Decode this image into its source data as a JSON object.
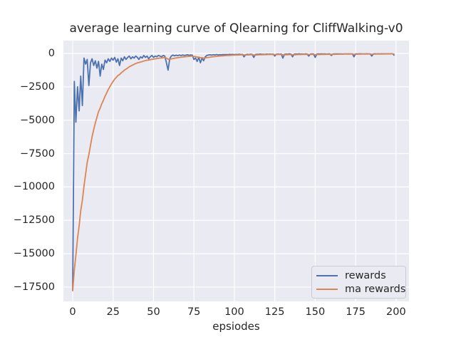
{
  "figure": {
    "background": "#ffffff",
    "plot_background": "#eaeaf2",
    "grid_color": "#ffffff",
    "text_color": "#262626"
  },
  "chart_data": {
    "type": "line",
    "title": "average learning curve of Qlearning for CliffWalking-v0",
    "xlabel": "epsiodes",
    "ylabel": "",
    "grid": true,
    "legend_position": "lower right",
    "xlim": [
      -5.73,
      208.0
    ],
    "ylim": [
      -18570,
      960
    ],
    "x_ticks": [
      0,
      25,
      50,
      75,
      100,
      125,
      150,
      175,
      200
    ],
    "x_tick_labels": [
      "0",
      "25",
      "50",
      "75",
      "100",
      "125",
      "150",
      "175",
      "200"
    ],
    "y_ticks": [
      0,
      -2500,
      -5000,
      -7500,
      -10000,
      -12500,
      -15000,
      -17500
    ],
    "y_tick_labels": [
      "0",
      "−2500",
      "−5000",
      "−7500",
      "−10000",
      "−12500",
      "−15000",
      "−17500"
    ],
    "x_start": 0,
    "x_step": 1,
    "series": [
      {
        "name": "rewards",
        "color": "#4c72b0",
        "values": [
          -17800,
          -2100,
          -5150,
          -2500,
          -4300,
          -1700,
          -3900,
          -350,
          -800,
          -450,
          -2400,
          -700,
          -400,
          -900,
          -550,
          -1100,
          -600,
          -1700,
          -800,
          -1200,
          -500,
          -700,
          -400,
          -600,
          -350,
          -500,
          -300,
          -650,
          -400,
          -900,
          -350,
          -550,
          -250,
          -450,
          -300,
          -200,
          -400,
          -250,
          -350,
          -200,
          -300,
          -450,
          -250,
          -350,
          -150,
          -300,
          -200,
          -400,
          -250,
          -150,
          -300,
          -200,
          -250,
          -150,
          -200,
          -250,
          -150,
          -200,
          -700,
          -1250,
          -400,
          -200,
          -120,
          -180,
          -130,
          -170,
          -120,
          -160,
          -110,
          -150,
          -130,
          -100,
          -140,
          -110,
          -130,
          -450,
          -350,
          -600,
          -300,
          -700,
          -350,
          -550,
          -250,
          -150,
          -120,
          -100,
          -130,
          -90,
          -120,
          -80,
          -110,
          -90,
          -100,
          -80,
          -90,
          -80,
          -90,
          -70,
          -80,
          -70,
          -90,
          -70,
          -80,
          -60,
          -80,
          -70,
          -250,
          -90,
          -70,
          -80,
          -60,
          -70,
          -300,
          -80,
          -60,
          -70,
          -50,
          -60,
          -60,
          -70,
          -50,
          -60,
          -50,
          -60,
          -50,
          -200,
          -60,
          -50,
          -60,
          -40,
          -350,
          -60,
          -50,
          -55,
          -40,
          -50,
          -250,
          -55,
          -45,
          -50,
          -40,
          -50,
          -45,
          -55,
          -40,
          -45,
          -200,
          -50,
          -40,
          -45,
          -300,
          -50,
          -40,
          -45,
          -35,
          -45,
          -40,
          -50,
          -35,
          -40,
          -150,
          -45,
          -35,
          -40,
          -30,
          -40,
          -35,
          -45,
          -30,
          -35,
          -40,
          -30,
          -35,
          -30,
          -250,
          -35,
          -30,
          -35,
          -25,
          -35,
          -30,
          -40,
          -25,
          -30,
          -35,
          -200,
          -30,
          -25,
          -30,
          -25,
          -30,
          -25,
          -35,
          -25,
          -30,
          -25,
          -30,
          -25,
          -30,
          -150
        ]
      },
      {
        "name": "ma rewards",
        "color": "#dd8452",
        "values": [
          -17800,
          -16230,
          -15122,
          -13860,
          -12904,
          -11784,
          -10996,
          -9931,
          -9018,
          -8161,
          -7585,
          -6897,
          -6247,
          -5712,
          -5196,
          -4786,
          -4367,
          -4100,
          -3770,
          -3513,
          -3212,
          -2961,
          -2705,
          -2495,
          -2281,
          -2103,
          -1923,
          -1796,
          -1656,
          -1580,
          -1457,
          -1366,
          -1254,
          -1174,
          -1087,
          -998,
          -938,
          -869,
          -817,
          -755,
          -710,
          -684,
          -641,
          -612,
          -566,
          -539,
          -505,
          -495,
          -471,
          -439,
          -425,
          -403,
          -388,
          -364,
          -348,
          -338,
          -319,
          -307,
          -346,
          -436,
          -432,
          -409,
          -380,
          -360,
          -337,
          -320,
          -300,
          -286,
          -268,
          -256,
          -243,
          -229,
          -220,
          -209,
          -201,
          -226,
          -238,
          -274,
          -277,
          -319,
          -322,
          -345,
          -335,
          -317,
          -297,
          -277,
          -262,
          -245,
          -233,
          -218,
          -207,
          -195,
          -186,
          -175,
          -167,
          -158,
          -151,
          -143,
          -137,
          -130,
          -126,
          -120,
          -116,
          -110,
          -107,
          -103,
          -118,
          -115,
          -111,
          -108,
          -103,
          -100,
          -120,
          -116,
          -110,
          -106,
          -100,
          -96,
          -92,
          -90,
          -86,
          -83,
          -80,
          -78,
          -75,
          -88,
          -85,
          -82,
          -80,
          -76,
          -103,
          -99,
          -94,
          -90,
          -85,
          -82,
          -99,
          -94,
          -89,
          -85,
          -81,
          -78,
          -74,
          -72,
          -69,
          -66,
          -79,
          -76,
          -72,
          -69,
          -92,
          -88,
          -83,
          -79,
          -74,
          -71,
          -68,
          -66,
          -62,
          -60,
          -69,
          -66,
          -62,
          -60,
          -57,
          -55,
          -53,
          -52,
          -50,
          -48,
          -47,
          -45,
          -44,
          -43,
          -64,
          -61,
          -58,
          -55,
          -52,
          -50,
          -48,
          -47,
          -44,
          -43,
          -42,
          -58,
          -55,
          -52,
          -50,
          -47,
          -45,
          -43,
          -42,
          -40,
          -39,
          -37,
          -36,
          -34,
          -34,
          -46
        ]
      }
    ]
  }
}
